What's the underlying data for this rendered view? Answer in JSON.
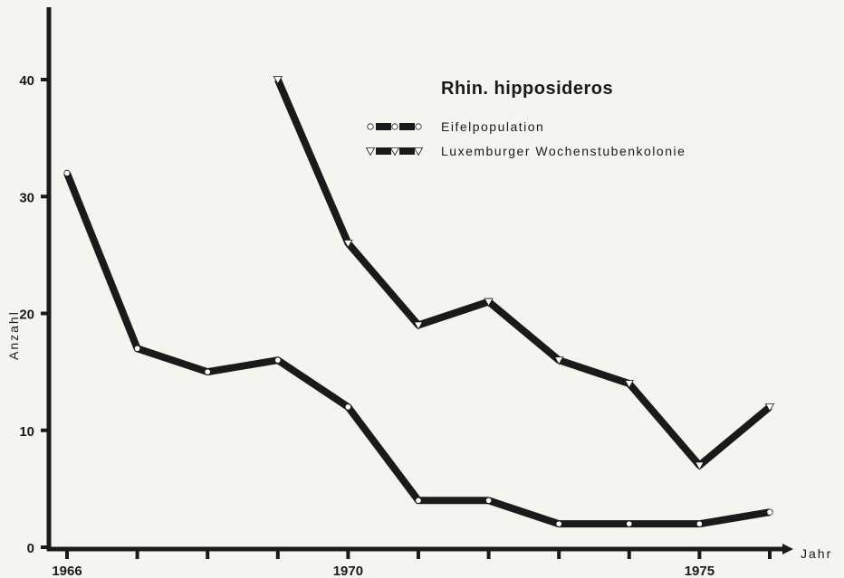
{
  "chart_data": {
    "type": "line",
    "title": "Rhin. hipposideros",
    "xlabel": "Jahr",
    "ylabel": "Anzahl",
    "xlim": [
      1966,
      1976
    ],
    "ylim": [
      0,
      44
    ],
    "x_ticks": [
      1966,
      1967,
      1968,
      1969,
      1970,
      1971,
      1972,
      1973,
      1974,
      1975,
      1976
    ],
    "x_tick_labels": [
      {
        "x": 1966,
        "label": "1966"
      },
      {
        "x": 1970,
        "label": "1970"
      },
      {
        "x": 1975,
        "label": "1975"
      }
    ],
    "y_ticks": [
      0,
      10,
      20,
      30,
      40
    ],
    "y_tick_labels": [
      "0",
      "10",
      "20",
      "30",
      "40"
    ],
    "grid": false,
    "legend_position": "top-right",
    "series": [
      {
        "name": "Eifelpopulation",
        "marker": "circle",
        "color": "#1a1a1a",
        "x": [
          1966,
          1967,
          1968,
          1969,
          1970,
          1971,
          1972,
          1973,
          1974,
          1975,
          1976
        ],
        "y": [
          32,
          17,
          15,
          16,
          12,
          4,
          4,
          2,
          2,
          2,
          3
        ]
      },
      {
        "name": "Luxemburger Wochenstubenkolonie",
        "marker": "triangle-down",
        "color": "#1a1a1a",
        "x": [
          1969,
          1970,
          1971,
          1972,
          1973,
          1974,
          1975,
          1976
        ],
        "y": [
          40,
          26,
          19,
          21,
          16,
          14,
          7,
          12
        ]
      }
    ]
  }
}
